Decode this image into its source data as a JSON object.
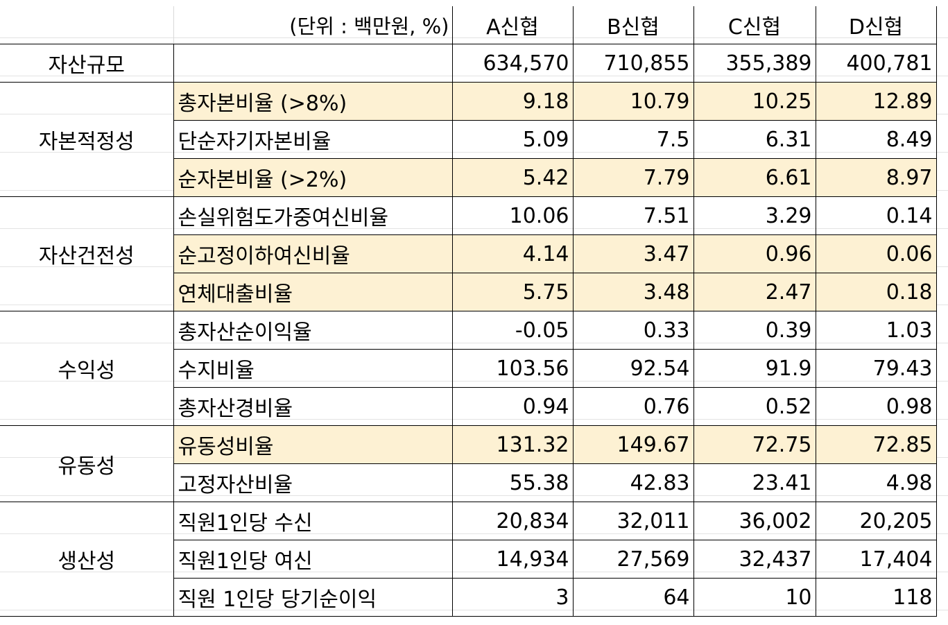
{
  "header": {
    "unit": "(단위 : 백만원, %)",
    "columns": [
      "A신협",
      "B신협",
      "C신협",
      "D신협"
    ]
  },
  "asset_size": {
    "label": "자산규모",
    "values": [
      "634,570",
      "710,855",
      "355,389",
      "400,781"
    ]
  },
  "groups": [
    {
      "category": "자본적정성",
      "rows": [
        {
          "label": "총자본비율 (>8%)",
          "values": [
            "9.18",
            "10.79",
            "10.25",
            "12.89"
          ],
          "highlight": true
        },
        {
          "label": "단순자기자본비율",
          "values": [
            "5.09",
            "7.5",
            "6.31",
            "8.49"
          ],
          "highlight": false
        },
        {
          "label": "순자본비율 (>2%)",
          "values": [
            "5.42",
            "7.79",
            "6.61",
            "8.97"
          ],
          "highlight": true
        }
      ]
    },
    {
      "category": "자산건전성",
      "rows": [
        {
          "label": "손실위험도가중여신비율",
          "values": [
            "10.06",
            "7.51",
            "3.29",
            "0.14"
          ],
          "highlight": false
        },
        {
          "label": "순고정이하여신비율",
          "values": [
            "4.14",
            "3.47",
            "0.96",
            "0.06"
          ],
          "highlight": true
        },
        {
          "label": "연체대출비율",
          "values": [
            "5.75",
            "3.48",
            "2.47",
            "0.18"
          ],
          "highlight": true
        }
      ]
    },
    {
      "category": "수익성",
      "rows": [
        {
          "label": "총자산순이익율",
          "values": [
            "-0.05",
            "0.33",
            "0.39",
            "1.03"
          ],
          "highlight": false
        },
        {
          "label": "수지비율",
          "values": [
            "103.56",
            "92.54",
            "91.9",
            "79.43"
          ],
          "highlight": false
        },
        {
          "label": "총자산경비율",
          "values": [
            "0.94",
            "0.76",
            "0.52",
            "0.98"
          ],
          "highlight": false
        }
      ]
    },
    {
      "category": "유동성",
      "rows": [
        {
          "label": "유동성비율",
          "values": [
            "131.32",
            "149.67",
            "72.75",
            "72.85"
          ],
          "highlight": true
        },
        {
          "label": "고정자산비율",
          "values": [
            "55.38",
            "42.83",
            "23.41",
            "4.98"
          ],
          "highlight": false
        }
      ]
    },
    {
      "category": "생산성",
      "rows": [
        {
          "label": "직원1인당 수신",
          "values": [
            "20,834",
            "32,011",
            "36,002",
            "20,205"
          ],
          "highlight": false
        },
        {
          "label": "직원1인당 여신",
          "values": [
            "14,934",
            "27,569",
            "32,437",
            "17,404"
          ],
          "highlight": false
        },
        {
          "label": "직원 1인당 당기순이익",
          "values": [
            "3",
            "64",
            "10",
            "118"
          ],
          "highlight": false
        }
      ]
    }
  ],
  "colors": {
    "highlight": "#fdf1d3",
    "border": "#000000",
    "gridline": "#e3e3e3"
  }
}
